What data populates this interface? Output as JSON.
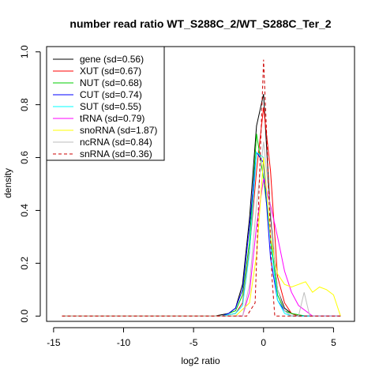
{
  "chart_data": {
    "type": "line",
    "title": "number read ratio WT_S288C_2/WT_S288C_Ter_2",
    "xlabel": "log2 ratio",
    "ylabel": "density",
    "xlim": [
      -15.5,
      6.5
    ],
    "ylim": [
      -0.02,
      1.02
    ],
    "xticks": [
      -15,
      -10,
      -5,
      0,
      5
    ],
    "yticks": [
      0.0,
      0.2,
      0.4,
      0.6,
      0.8,
      1.0
    ],
    "xtick_labels": [
      "-15",
      "-10",
      "-5",
      "0",
      "5"
    ],
    "ytick_labels": [
      "0.0",
      "0.2",
      "0.4",
      "0.6",
      "0.8",
      "1.0"
    ],
    "legend_position": "top-left",
    "series": [
      {
        "name": "gene (sd=0.56)",
        "color": "#000000",
        "dash": false,
        "x": [
          -14.4,
          -3.5,
          -2.5,
          -2.0,
          -1.5,
          -1.0,
          -0.5,
          0.0,
          0.5,
          1.0,
          1.5,
          2.0,
          2.5,
          3.0,
          4.0,
          5.5
        ],
        "y": [
          0.0,
          0.0,
          0.01,
          0.03,
          0.12,
          0.37,
          0.72,
          0.84,
          0.38,
          0.1,
          0.03,
          0.01,
          0.0,
          0.0,
          0.0,
          0.0
        ]
      },
      {
        "name": "XUT (sd=0.67)",
        "color": "#ff0000",
        "dash": false,
        "x": [
          -14.4,
          -3.0,
          -2.0,
          -1.5,
          -1.0,
          -0.5,
          0.0,
          0.5,
          1.0,
          1.5,
          2.0,
          2.5,
          3.0,
          5.5
        ],
        "y": [
          0.0,
          0.0,
          0.01,
          0.05,
          0.25,
          0.55,
          0.79,
          0.55,
          0.15,
          0.05,
          0.01,
          0.0,
          0.0,
          0.0
        ]
      },
      {
        "name": "NUT (sd=0.68)",
        "color": "#00cc00",
        "dash": false,
        "x": [
          -14.4,
          -3.0,
          -2.0,
          -1.5,
          -1.0,
          -0.5,
          0.0,
          0.5,
          1.0,
          1.5,
          2.0,
          3.0,
          5.5
        ],
        "y": [
          0.0,
          0.0,
          0.02,
          0.08,
          0.28,
          0.69,
          0.52,
          0.3,
          0.08,
          0.02,
          0.01,
          0.0,
          0.0
        ]
      },
      {
        "name": "CUT (sd=0.74)",
        "color": "#0000ff",
        "dash": false,
        "x": [
          -14.4,
          -3.0,
          -2.5,
          -2.0,
          -1.5,
          -1.0,
          -0.5,
          0.0,
          0.5,
          1.0,
          1.5,
          2.0,
          3.0,
          5.5
        ],
        "y": [
          0.0,
          0.0,
          0.01,
          0.03,
          0.1,
          0.34,
          0.62,
          0.58,
          0.22,
          0.06,
          0.02,
          0.0,
          0.0,
          0.0
        ]
      },
      {
        "name": "SUT (sd=0.55)",
        "color": "#00ffff",
        "dash": false,
        "x": [
          -14.4,
          -3.0,
          -2.0,
          -1.5,
          -1.0,
          -0.5,
          0.0,
          0.5,
          1.0,
          1.5,
          2.0,
          3.0,
          5.5
        ],
        "y": [
          0.0,
          0.0,
          0.01,
          0.04,
          0.24,
          0.62,
          0.6,
          0.28,
          0.06,
          0.01,
          0.0,
          0.0,
          0.0
        ]
      },
      {
        "name": "tRNA (sd=0.79)",
        "color": "#ff00ff",
        "dash": false,
        "x": [
          -14.4,
          -1.5,
          -1.0,
          -0.5,
          0.0,
          0.5,
          1.0,
          1.5,
          2.0,
          2.5,
          3.0,
          3.5,
          5.5
        ],
        "y": [
          0.0,
          0.0,
          0.09,
          0.34,
          0.52,
          0.42,
          0.3,
          0.17,
          0.09,
          0.04,
          0.02,
          0.0,
          0.0
        ]
      },
      {
        "name": "snoRNA (sd=1.87)",
        "color": "#ffff00",
        "dash": false,
        "x": [
          -14.4,
          -2.0,
          -1.0,
          -0.5,
          0.0,
          0.5,
          1.0,
          1.5,
          2.0,
          2.5,
          3.0,
          3.5,
          4.0,
          4.5,
          5.0,
          5.5
        ],
        "y": [
          0.0,
          0.0,
          0.05,
          0.23,
          0.6,
          0.3,
          0.16,
          0.12,
          0.11,
          0.12,
          0.13,
          0.09,
          0.11,
          0.1,
          0.08,
          0.0
        ]
      },
      {
        "name": "ncRNA (sd=0.84)",
        "color": "#bebebe",
        "dash": false,
        "x": [
          -14.4,
          -1.5,
          -1.0,
          -0.5,
          0.0,
          0.5,
          1.0,
          1.5,
          2.0,
          2.5,
          2.9,
          3.3,
          3.7,
          5.5
        ],
        "y": [
          0.0,
          0.0,
          0.12,
          0.42,
          0.66,
          0.4,
          0.1,
          0.02,
          0.0,
          0.0,
          0.09,
          0.0,
          0.0,
          0.0
        ]
      },
      {
        "name": "snRNA (sd=0.36)",
        "color": "#cc0000",
        "dash": true,
        "x": [
          -14.4,
          -1.2,
          -0.6,
          0.0,
          0.2,
          0.6,
          0.8,
          1.2,
          5.5
        ],
        "y": [
          0.0,
          0.0,
          0.05,
          0.97,
          0.72,
          0.15,
          0.0,
          0.0,
          0.0
        ]
      }
    ]
  }
}
